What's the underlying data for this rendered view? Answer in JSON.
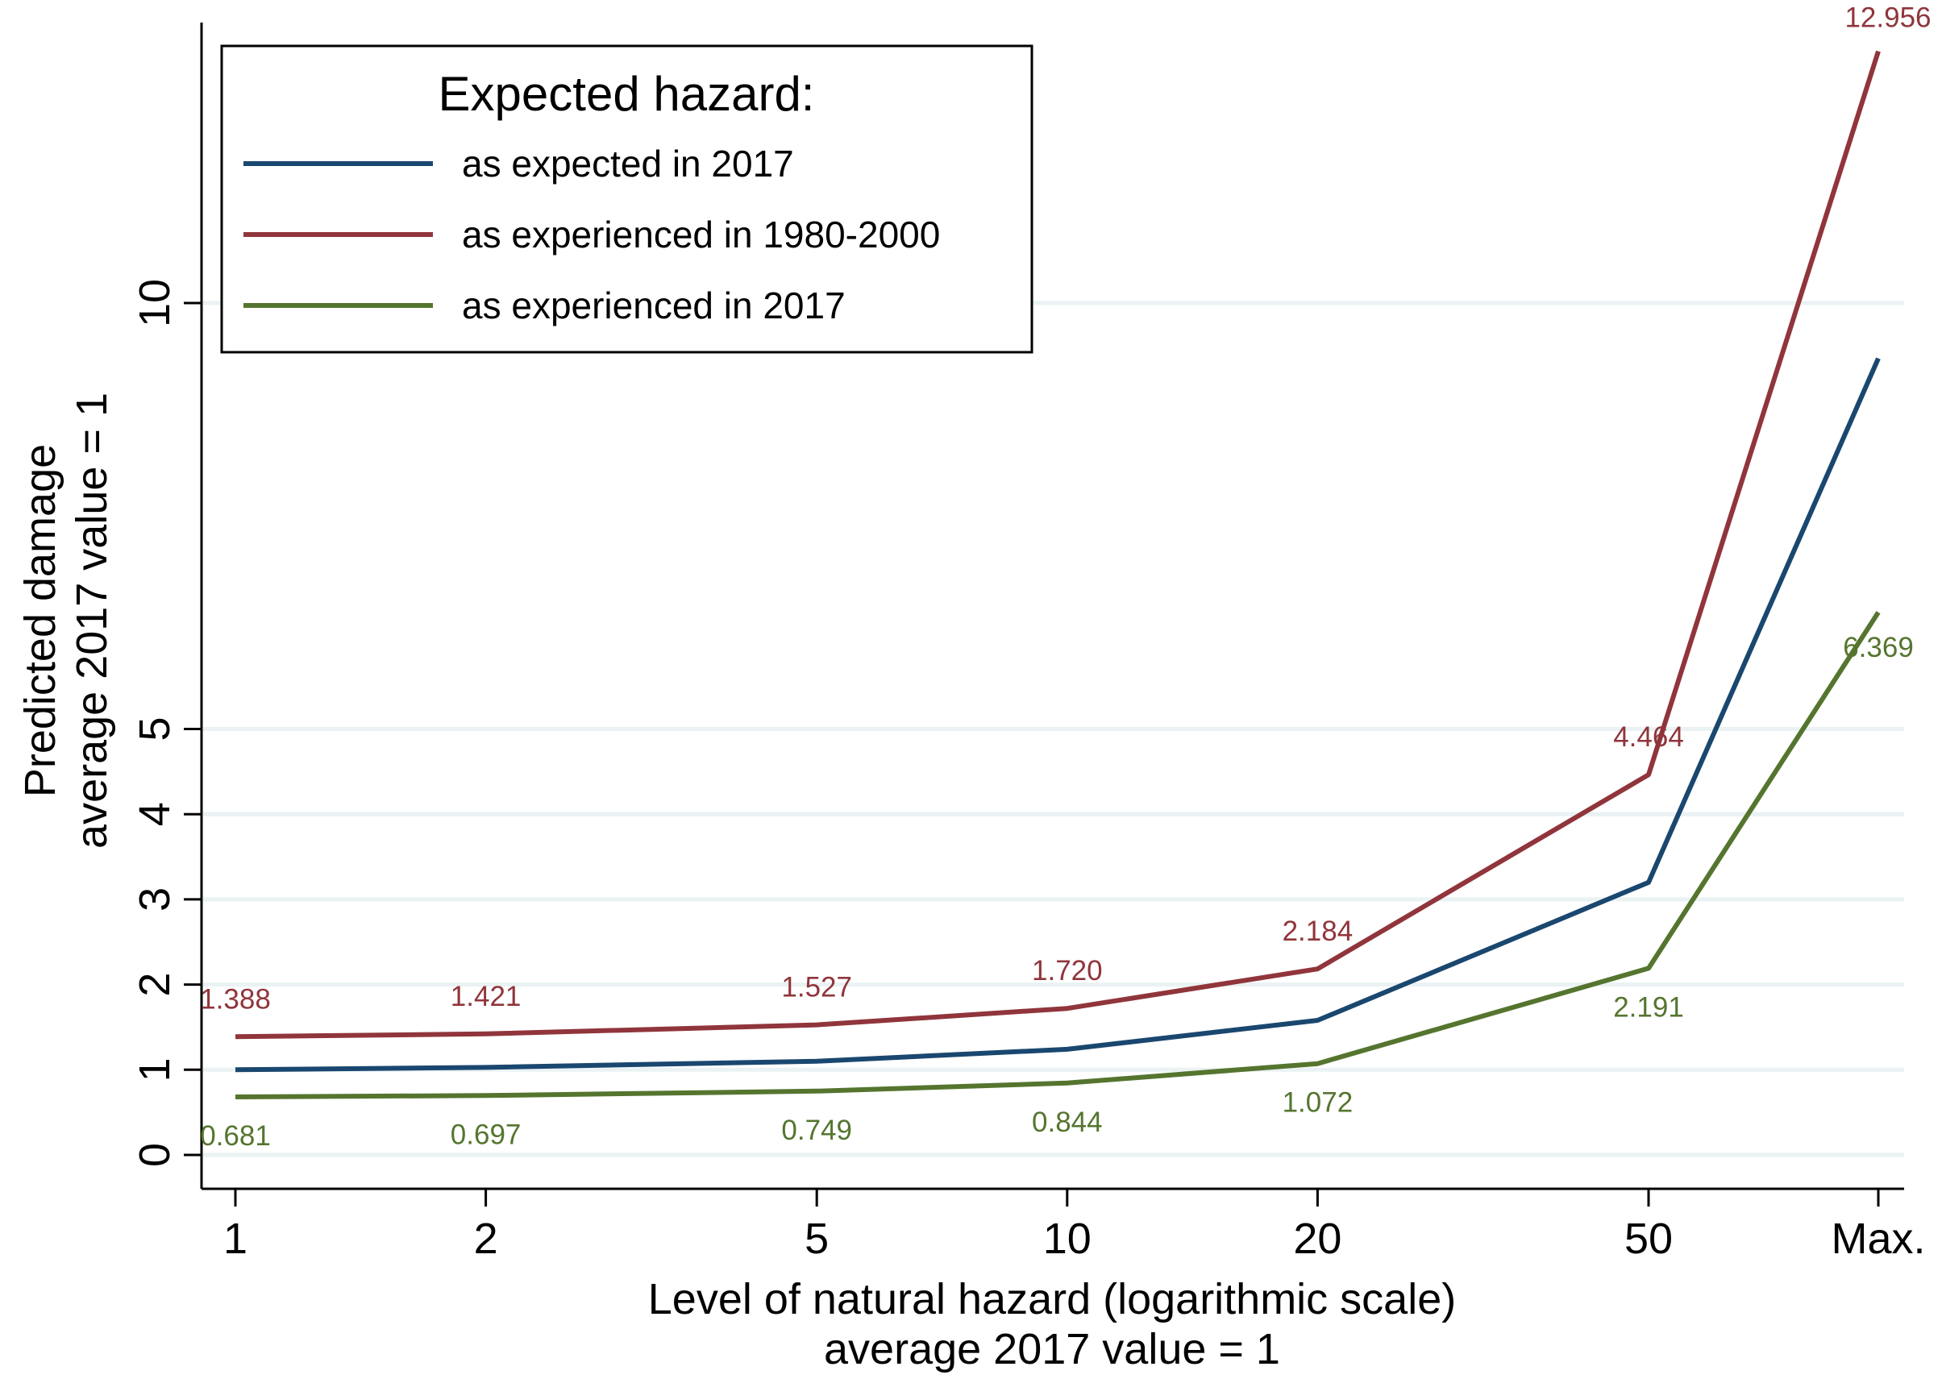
{
  "chart_data": {
    "type": "line",
    "title": "",
    "xlabel": "Level of natural hazard (logarithmic scale)",
    "xlabel_sub": "average 2017 value = 1",
    "ylabel": "Predicted damage",
    "ylabel_sub": "average 2017 value = 1",
    "x_scale": "log",
    "x_ticks": [
      {
        "value": 1,
        "label": "1"
      },
      {
        "value": 2,
        "label": "2"
      },
      {
        "value": 5,
        "label": "5"
      },
      {
        "value": 10,
        "label": "10"
      },
      {
        "value": 20,
        "label": "20"
      },
      {
        "value": 50,
        "label": "50"
      },
      {
        "value": 99,
        "label": "Max."
      }
    ],
    "y_ticks": [
      {
        "value": 0,
        "label": "0"
      },
      {
        "value": 1,
        "label": "1"
      },
      {
        "value": 2,
        "label": "2"
      },
      {
        "value": 3,
        "label": "3"
      },
      {
        "value": 4,
        "label": "4"
      },
      {
        "value": 5,
        "label": "5"
      },
      {
        "value": 10,
        "label": "10"
      }
    ],
    "ylim": [
      0,
      13
    ],
    "grid": true,
    "legend": {
      "title": "Expected hazard:",
      "position": "top-left"
    },
    "series": [
      {
        "name": "as expected in 2017",
        "color": "#1a476f",
        "values": [
          1.0,
          1.027,
          1.1,
          1.24,
          1.58,
          3.2,
          9.35
        ],
        "labels": [],
        "label_pos": []
      },
      {
        "name": "as experienced in 1980-2000",
        "color": "#90353b",
        "values": [
          1.388,
          1.421,
          1.527,
          1.72,
          2.184,
          4.464,
          12.956
        ],
        "labels": [
          "1.388",
          "1.421",
          "1.527",
          "1.720",
          "2.184",
          "4.464",
          "12.956"
        ],
        "label_pos": [
          "above",
          "above",
          "above",
          "above",
          "above",
          "above",
          "above"
        ]
      },
      {
        "name": "as experienced in 2017",
        "color": "#55752f",
        "values": [
          0.681,
          0.697,
          0.749,
          0.844,
          1.072,
          2.191,
          6.369
        ],
        "labels": [
          "0.681",
          "0.697",
          "0.749",
          "0.844",
          "1.072",
          "2.191",
          "6.369"
        ],
        "label_pos": [
          "below",
          "below",
          "below",
          "below",
          "below",
          "below",
          "below"
        ]
      }
    ]
  }
}
